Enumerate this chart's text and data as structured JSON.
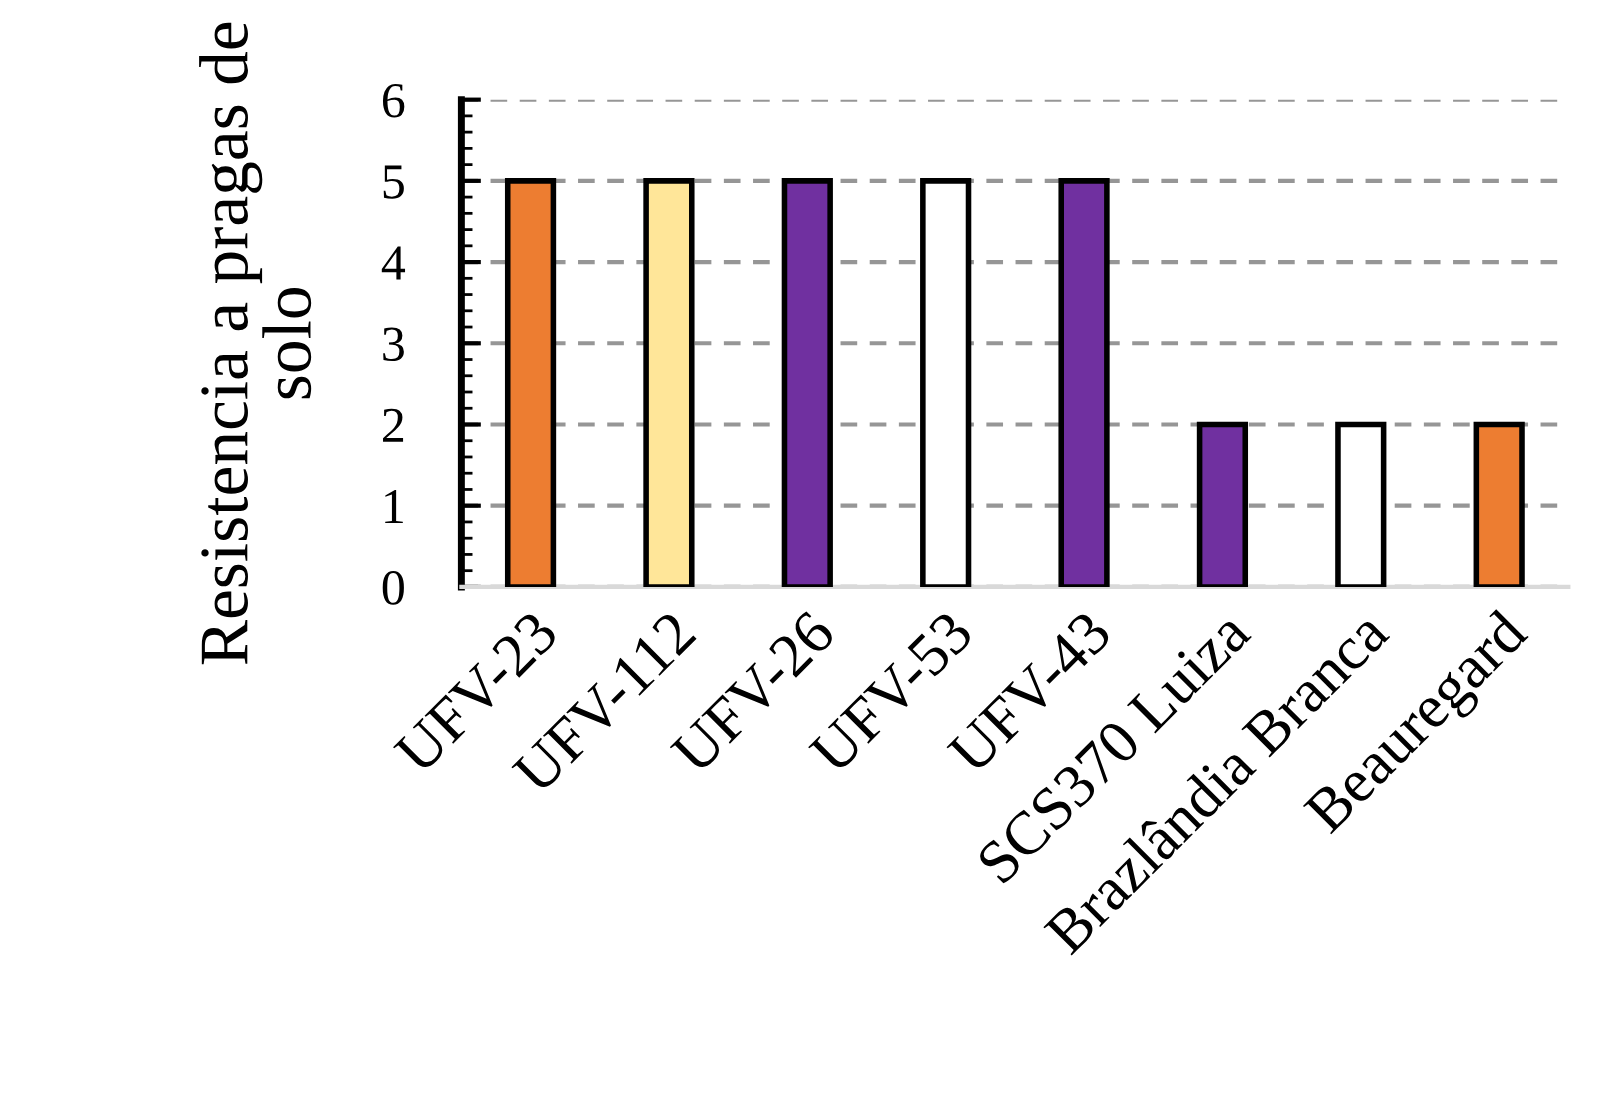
{
  "chart_data": {
    "type": "bar",
    "ylabel": "Resistencia a pragas de\nsolo",
    "categories": [
      "UFV-23",
      "UFV-112",
      "UFV-26",
      "UFV-53",
      "UFV-43",
      "SCS370 Luiza",
      "Brazlândia Branca",
      "Beauregard"
    ],
    "values": [
      5,
      5,
      5,
      5,
      5,
      2,
      2,
      2
    ],
    "colors": [
      "#ed7d31",
      "#ffe699",
      "#7030a0",
      "#ffffff",
      "#7030a0",
      "#7030a0",
      "#ffffff",
      "#ed7d31"
    ],
    "ylim": [
      0,
      6
    ],
    "yticks": [
      0,
      1,
      2,
      3,
      4,
      5,
      6
    ],
    "grid": "y"
  }
}
